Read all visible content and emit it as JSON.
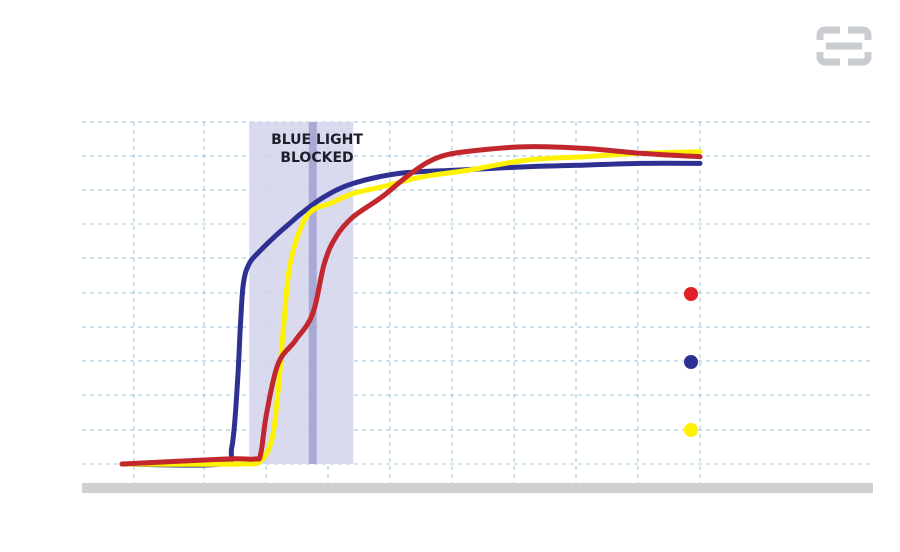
{
  "logo": {
    "icon": "brand-logo-icon",
    "color": "#c9cdd2"
  },
  "chart_data": {
    "type": "line",
    "title": "",
    "xlabel": "",
    "ylabel": "",
    "xlim": [
      0,
      1
    ],
    "ylim": [
      0,
      1
    ],
    "grid": true,
    "annotation": {
      "label_line1": "BLUE LIGHT",
      "label_line2": "BLOCKED",
      "x_start": 0.22,
      "x_end": 0.4,
      "marker_x": 0.33,
      "color": "#d3d3ec"
    },
    "legend": {
      "placement": "right",
      "markers": [
        {
          "color": "#e2202a"
        },
        {
          "color": "#2e3192"
        },
        {
          "color": "#fff200"
        }
      ]
    },
    "series": [
      {
        "color": "#2e3192",
        "x": [
          0,
          0.17,
          0.19,
          0.2,
          0.205,
          0.21,
          0.22,
          0.24,
          0.27,
          0.29,
          0.31,
          0.35,
          0.4,
          0.48,
          0.58,
          0.7,
          0.8,
          0.9,
          1.0
        ],
        "y": [
          0,
          0,
          0.05,
          0.25,
          0.42,
          0.54,
          0.6,
          0.64,
          0.69,
          0.72,
          0.75,
          0.8,
          0.84,
          0.87,
          0.88,
          0.89,
          0.895,
          0.9,
          0.9
        ]
      },
      {
        "color": "#fff200",
        "x": [
          0,
          0.2,
          0.24,
          0.26,
          0.27,
          0.28,
          0.29,
          0.31,
          0.33,
          0.36,
          0.4,
          0.45,
          0.52,
          0.6,
          0.7,
          0.8,
          0.9,
          1.0
        ],
        "y": [
          0,
          0,
          0.01,
          0.08,
          0.22,
          0.42,
          0.59,
          0.71,
          0.76,
          0.78,
          0.81,
          0.83,
          0.86,
          0.88,
          0.91,
          0.92,
          0.93,
          0.935
        ]
      },
      {
        "color": "#c1272d",
        "x": [
          0,
          0.18,
          0.23,
          0.24,
          0.25,
          0.27,
          0.3,
          0.33,
          0.35,
          0.37,
          0.4,
          0.45,
          0.5,
          0.55,
          0.62,
          0.7,
          0.8,
          0.9,
          1.0
        ],
        "y": [
          0,
          0.015,
          0.015,
          0.03,
          0.15,
          0.3,
          0.37,
          0.45,
          0.6,
          0.68,
          0.74,
          0.8,
          0.87,
          0.92,
          0.94,
          0.95,
          0.945,
          0.93,
          0.92
        ]
      }
    ]
  }
}
